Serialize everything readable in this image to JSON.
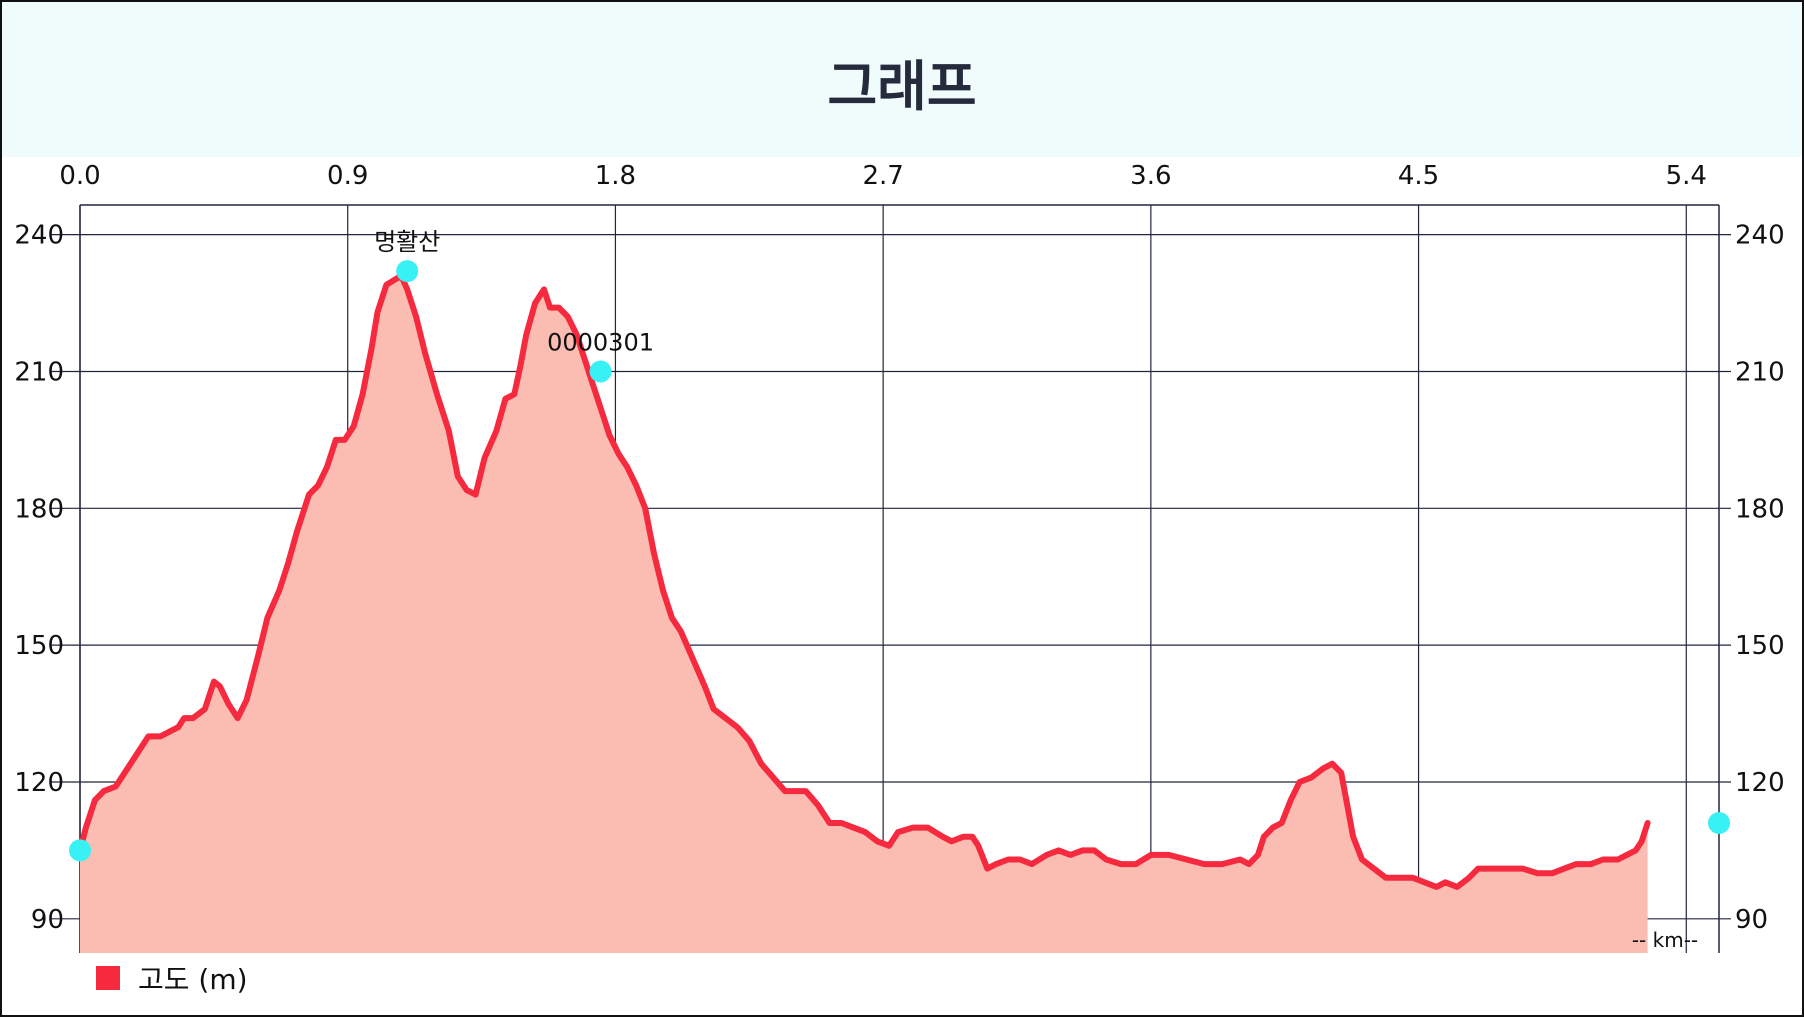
{
  "header": {
    "title": "그래프"
  },
  "chart_data": {
    "type": "area",
    "xlabel": "-- km--",
    "x_ticks": [
      "0.0",
      "0.9",
      "1.8",
      "2.7",
      "3.6",
      "4.5",
      "5.4"
    ],
    "y_ticks": [
      "90",
      "120",
      "150",
      "180",
      "210",
      "240"
    ],
    "xlim": [
      0,
      5.51
    ],
    "ylim": [
      82.5,
      246.5
    ],
    "grid": true,
    "legend_position": "bottom-left",
    "series": [
      {
        "name": "고도 (m)",
        "color": "#f52a3f",
        "fill": "#fbbcb2",
        "points": [
          [
            0.0,
            105
          ],
          [
            0.02,
            110
          ],
          [
            0.05,
            116
          ],
          [
            0.08,
            118
          ],
          [
            0.12,
            119
          ],
          [
            0.16,
            123
          ],
          [
            0.2,
            127
          ],
          [
            0.23,
            130
          ],
          [
            0.27,
            130
          ],
          [
            0.3,
            131
          ],
          [
            0.33,
            132
          ],
          [
            0.35,
            134
          ],
          [
            0.38,
            134
          ],
          [
            0.42,
            136
          ],
          [
            0.45,
            142
          ],
          [
            0.47,
            141
          ],
          [
            0.5,
            137
          ],
          [
            0.53,
            134
          ],
          [
            0.56,
            138
          ],
          [
            0.6,
            148
          ],
          [
            0.63,
            156
          ],
          [
            0.67,
            162
          ],
          [
            0.7,
            168
          ],
          [
            0.73,
            175
          ],
          [
            0.77,
            183
          ],
          [
            0.8,
            185
          ],
          [
            0.83,
            189
          ],
          [
            0.86,
            195
          ],
          [
            0.89,
            195
          ],
          [
            0.92,
            198
          ],
          [
            0.95,
            205
          ],
          [
            0.98,
            215
          ],
          [
            1.0,
            223
          ],
          [
            1.03,
            229
          ],
          [
            1.08,
            231
          ],
          [
            1.1,
            228
          ],
          [
            1.13,
            222
          ],
          [
            1.16,
            214
          ],
          [
            1.2,
            205
          ],
          [
            1.24,
            197
          ],
          [
            1.27,
            187
          ],
          [
            1.3,
            184
          ],
          [
            1.33,
            183
          ],
          [
            1.36,
            191
          ],
          [
            1.4,
            197
          ],
          [
            1.43,
            204
          ],
          [
            1.46,
            205
          ],
          [
            1.48,
            211
          ],
          [
            1.5,
            218
          ],
          [
            1.53,
            225
          ],
          [
            1.56,
            228
          ],
          [
            1.58,
            224
          ],
          [
            1.61,
            224
          ],
          [
            1.64,
            222
          ],
          [
            1.67,
            218
          ],
          [
            1.7,
            212
          ],
          [
            1.72,
            208
          ],
          [
            1.75,
            202
          ],
          [
            1.78,
            196
          ],
          [
            1.81,
            192
          ],
          [
            1.84,
            189
          ],
          [
            1.87,
            185
          ],
          [
            1.9,
            180
          ],
          [
            1.93,
            170
          ],
          [
            1.96,
            162
          ],
          [
            1.99,
            156
          ],
          [
            2.02,
            153
          ],
          [
            2.06,
            147
          ],
          [
            2.1,
            141
          ],
          [
            2.13,
            136
          ],
          [
            2.17,
            134
          ],
          [
            2.21,
            132
          ],
          [
            2.25,
            129
          ],
          [
            2.29,
            124
          ],
          [
            2.33,
            121
          ],
          [
            2.37,
            118
          ],
          [
            2.41,
            118
          ],
          [
            2.44,
            118
          ],
          [
            2.48,
            115
          ],
          [
            2.52,
            111
          ],
          [
            2.56,
            111
          ],
          [
            2.6,
            110
          ],
          [
            2.64,
            109
          ],
          [
            2.68,
            107
          ],
          [
            2.72,
            106
          ],
          [
            2.75,
            109
          ],
          [
            2.8,
            110
          ],
          [
            2.85,
            110
          ],
          [
            2.9,
            108
          ],
          [
            2.93,
            107
          ],
          [
            2.97,
            108
          ],
          [
            3.0,
            108
          ],
          [
            3.02,
            106
          ],
          [
            3.05,
            101
          ],
          [
            3.08,
            102
          ],
          [
            3.12,
            103
          ],
          [
            3.16,
            103
          ],
          [
            3.2,
            102
          ],
          [
            3.25,
            104
          ],
          [
            3.29,
            105
          ],
          [
            3.33,
            104
          ],
          [
            3.37,
            105
          ],
          [
            3.41,
            105
          ],
          [
            3.45,
            103
          ],
          [
            3.5,
            102
          ],
          [
            3.55,
            102
          ],
          [
            3.6,
            104
          ],
          [
            3.66,
            104
          ],
          [
            3.72,
            103
          ],
          [
            3.78,
            102
          ],
          [
            3.84,
            102
          ],
          [
            3.9,
            103
          ],
          [
            3.93,
            102
          ],
          [
            3.96,
            104
          ],
          [
            3.98,
            108
          ],
          [
            4.01,
            110
          ],
          [
            4.04,
            111
          ],
          [
            4.07,
            116
          ],
          [
            4.1,
            120
          ],
          [
            4.14,
            121
          ],
          [
            4.18,
            123
          ],
          [
            4.21,
            124
          ],
          [
            4.24,
            122
          ],
          [
            4.26,
            115
          ],
          [
            4.28,
            108
          ],
          [
            4.31,
            103
          ],
          [
            4.35,
            101
          ],
          [
            4.39,
            99
          ],
          [
            4.44,
            99
          ],
          [
            4.48,
            99
          ],
          [
            4.52,
            98
          ],
          [
            4.56,
            97
          ],
          [
            4.59,
            98
          ],
          [
            4.63,
            97
          ],
          [
            4.67,
            99
          ],
          [
            4.7,
            101
          ],
          [
            4.75,
            101
          ],
          [
            4.8,
            101
          ],
          [
            4.85,
            101
          ],
          [
            4.9,
            100
          ],
          [
            4.95,
            100
          ],
          [
            4.99,
            101
          ],
          [
            5.03,
            102
          ],
          [
            5.08,
            102
          ],
          [
            5.12,
            103
          ],
          [
            5.17,
            103
          ],
          [
            5.2,
            104
          ],
          [
            5.23,
            105
          ],
          [
            5.25,
            107
          ],
          [
            5.27,
            111
          ]
        ]
      }
    ],
    "waypoints": [
      {
        "x": 0.0,
        "y": 105,
        "label": ""
      },
      {
        "x": 1.1,
        "y": 232,
        "label": "명활산"
      },
      {
        "x": 1.75,
        "y": 210,
        "label": "0000301"
      },
      {
        "x": 5.51,
        "y": 111,
        "label": ""
      }
    ],
    "colors": {
      "marker": "#37f1f5",
      "grid": "#22263a",
      "header_bg": "#f0fcfc",
      "title": "#252a3d"
    }
  }
}
